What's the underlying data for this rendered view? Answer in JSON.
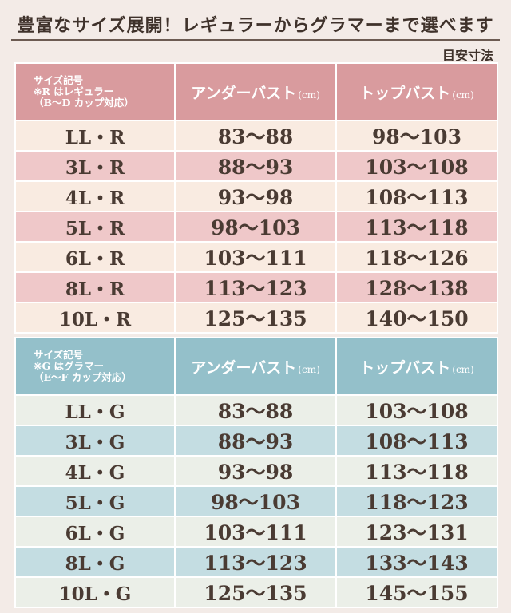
{
  "header": {
    "title": "豊富なサイズ展開！レギュラーからグラマーまで選べます",
    "unit_note": "目安寸法"
  },
  "tables": [
    {
      "key_header": [
        "サイズ記号",
        "※R はレギュラー",
        "（B〜D カップ対応）"
      ],
      "col_under": "アンダーバスト",
      "col_top": "トップバスト",
      "unit": "(cm)",
      "rows": [
        {
          "size": "LL・R",
          "under": "83〜88",
          "top": "98〜103"
        },
        {
          "size": "3L・R",
          "under": "88〜93",
          "top": "103〜108"
        },
        {
          "size": "4L・R",
          "under": "93〜98",
          "top": "108〜113"
        },
        {
          "size": "5L・R",
          "under": "98〜103",
          "top": "113〜118"
        },
        {
          "size": "6L・R",
          "under": "103〜111",
          "top": "118〜126"
        },
        {
          "size": "8L・R",
          "under": "113〜123",
          "top": "128〜138"
        },
        {
          "size": "10L・R",
          "under": "125〜135",
          "top": "140〜150"
        }
      ]
    },
    {
      "key_header": [
        "サイズ記号",
        "※G はグラマー",
        "（E〜F カップ対応）"
      ],
      "col_under": "アンダーバスト",
      "col_top": "トップバスト",
      "unit": "(cm)",
      "rows": [
        {
          "size": "LL・G",
          "under": "83〜88",
          "top": "103〜108"
        },
        {
          "size": "3L・G",
          "under": "88〜93",
          "top": "108〜113"
        },
        {
          "size": "4L・G",
          "under": "93〜98",
          "top": "113〜118"
        },
        {
          "size": "5L・G",
          "under": "98〜103",
          "top": "118〜123"
        },
        {
          "size": "6L・G",
          "under": "103〜111",
          "top": "123〜131"
        },
        {
          "size": "8L・G",
          "under": "113〜123",
          "top": "133〜143"
        },
        {
          "size": "10L・G",
          "under": "125〜135",
          "top": "145〜155"
        }
      ]
    }
  ],
  "colors": {
    "regular_header": "#d99b9e",
    "regular_dark_row": "#efc8c9",
    "regular_light_row": "#f9ebe1",
    "glamour_header": "#94c0ca",
    "glamour_dark_row": "#c4dde2",
    "glamour_light_row": "#ebefe8"
  }
}
